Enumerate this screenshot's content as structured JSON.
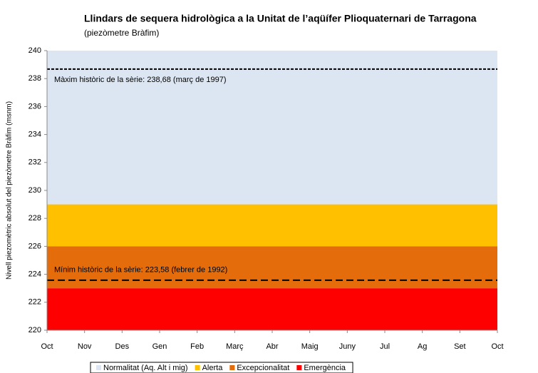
{
  "chart_data": {
    "type": "bands",
    "title": "Llindars de sequera hidrològica a la Unitat de l’aqüífer Plioquaternari de Tarragona",
    "subtitle": "(piezòmetre Bràfim)",
    "y_label": "Nivell piezomètric absolut del piezòmetre Bràfim (msnm)",
    "categories": [
      "Oct",
      "Nov",
      "Des",
      "Gen",
      "Feb",
      "Març",
      "Abr",
      "Maig",
      "Juny",
      "Jul",
      "Ag",
      "Set",
      "Oct"
    ],
    "ylim": [
      220,
      240
    ],
    "yticks": [
      220,
      222,
      224,
      226,
      228,
      230,
      232,
      234,
      236,
      238,
      240
    ],
    "bands": [
      {
        "name": "Normalitat (Aq. Alt i mig)",
        "color": "#dce6f2",
        "range": [
          229,
          240
        ]
      },
      {
        "name": "Alerta",
        "color": "#ffc000",
        "range": [
          226,
          229
        ]
      },
      {
        "name": "Excepcionalitat",
        "color": "#e46c0a",
        "range": [
          223,
          226
        ]
      },
      {
        "name": "Emergència",
        "color": "#ff0000",
        "range": [
          220,
          223
        ]
      }
    ],
    "reference_lines": [
      {
        "label": "Màxim històric de la sèrie: 238,68 (març de 1997)",
        "value": 238.68,
        "style": "dotted",
        "label_color": "#000000"
      },
      {
        "label": "Mínim històric de la sèrie: 223,58 (febrer de 1992)",
        "value": 223.58,
        "style": "dashed",
        "label_color": "#ffffff"
      }
    ]
  }
}
